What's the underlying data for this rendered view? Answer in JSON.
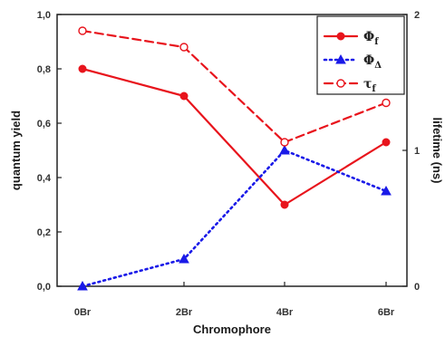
{
  "chart_data": {
    "type": "line",
    "xlabel": "Chromophore",
    "ylabel": "quantum yield",
    "y2label": "lifetime (ns)",
    "categories": [
      "0Br",
      "2Br",
      "4Br",
      "6Br"
    ],
    "ylim": [
      0,
      1
    ],
    "yticks": [
      "0,0",
      "0,2",
      "0,4",
      "0,6",
      "0,8",
      "1,0"
    ],
    "y2lim": [
      0,
      2
    ],
    "y2ticks": [
      "0",
      "1",
      "2"
    ],
    "legend_position": "top-right",
    "grid": false,
    "series": [
      {
        "key": "phi_f",
        "name": "Φ",
        "subscript": "f",
        "axis": "left",
        "values": [
          0.8,
          0.7,
          0.3,
          0.53
        ],
        "color": "#e8141c",
        "dash": "solid",
        "marker": "filled-circle"
      },
      {
        "key": "phi_delta",
        "name": "Φ",
        "subscript": "Δ",
        "axis": "left",
        "values": [
          0.0,
          0.1,
          0.5,
          0.35
        ],
        "color": "#1a1ae8",
        "dash": "dotted",
        "marker": "filled-triangle"
      },
      {
        "key": "tau_f",
        "name": "τ",
        "subscript": "f",
        "axis": "right",
        "values": [
          1.88,
          1.76,
          1.06,
          1.35
        ],
        "color": "#e8141c",
        "dash": "dashed",
        "marker": "open-circle"
      }
    ]
  }
}
